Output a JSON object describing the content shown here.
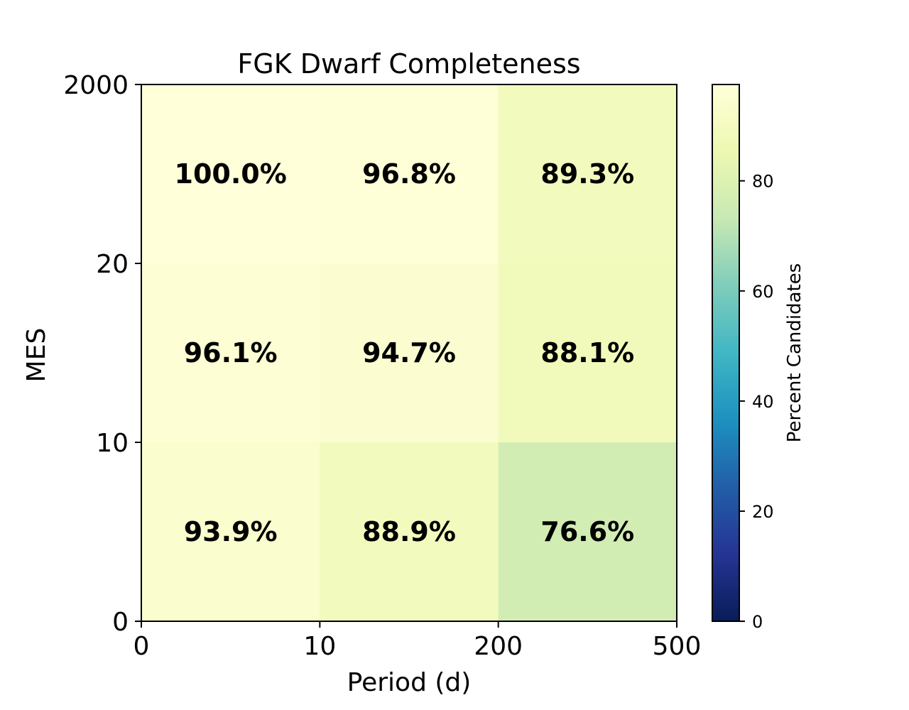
{
  "chart_data": {
    "type": "heatmap",
    "title": "FGK Dwarf Completeness",
    "xlabel": "Period (d)",
    "ylabel": "MES",
    "x_edges": [
      "0",
      "10",
      "200",
      "500"
    ],
    "y_edges": [
      "0",
      "10",
      "20",
      "2000"
    ],
    "rows": [
      {
        "y_bin": "20-2000",
        "values": [
          100.0,
          96.8,
          89.3
        ],
        "labels": [
          "100.0%",
          "96.8%",
          "89.3%"
        ]
      },
      {
        "y_bin": "10-20",
        "values": [
          96.1,
          94.7,
          88.1
        ],
        "labels": [
          "96.1%",
          "94.7%",
          "88.1%"
        ]
      },
      {
        "y_bin": "0-10",
        "values": [
          93.9,
          88.9,
          76.6
        ],
        "labels": [
          "93.9%",
          "88.9%",
          "76.6%"
        ]
      }
    ],
    "colorbar": {
      "label": "Percent Candidates",
      "range": [
        0,
        97.5
      ],
      "ticks": [
        0,
        20,
        40,
        60,
        80
      ],
      "tick_labels": [
        "0",
        "20",
        "40",
        "60",
        "80"
      ],
      "colormap": "YlGnBu_r"
    }
  }
}
